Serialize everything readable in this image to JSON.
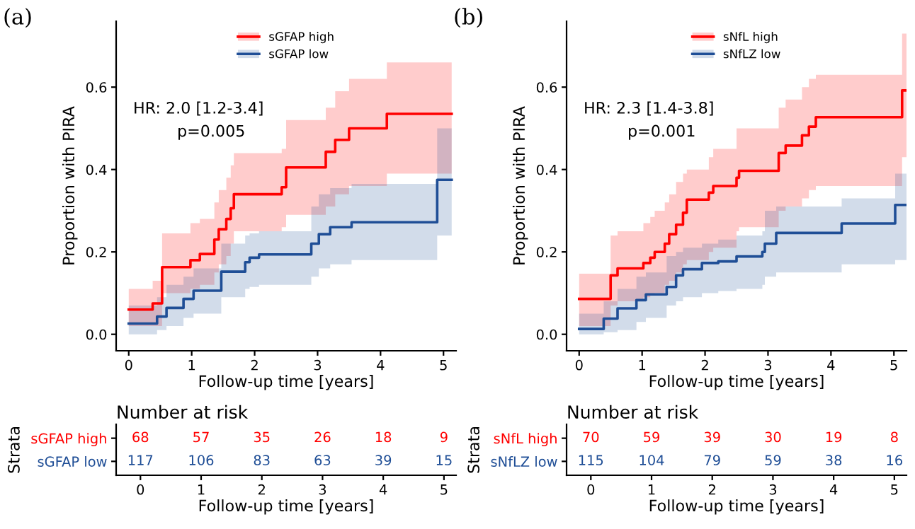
{
  "chart_data": [
    {
      "type": "step",
      "title": "(a)",
      "xlabel": "Follow-up time [years]",
      "ylabel": "Proportion with PIRA",
      "xlim": [
        -0.2,
        5.2
      ],
      "ylim": [
        -0.04,
        0.76
      ],
      "xticks": [
        0,
        1,
        2,
        3,
        4,
        5
      ],
      "yticks": [
        {
          "value": 0,
          "label": "0.0"
        },
        {
          "value": 0.2,
          "label": "0.2"
        },
        {
          "value": 0.4,
          "label": "0.4"
        },
        {
          "value": 0.6,
          "label": "0.6"
        }
      ],
      "legend": "top",
      "annotations": [
        "HR: 2.0 [1.2-3.4]",
        "p=0.005"
      ],
      "series": [
        {
          "name": "sGFAP high",
          "color": "#ff0000",
          "x": [
            0,
            0.38,
            0.53,
            0.98,
            1.13,
            1.36,
            1.43,
            1.55,
            1.62,
            1.67,
            2.43,
            2.5,
            3.13,
            3.28,
            3.5,
            4.1,
            5.13
          ],
          "values": [
            0.06,
            0.075,
            0.163,
            0.18,
            0.195,
            0.23,
            0.255,
            0.28,
            0.306,
            0.34,
            0.357,
            0.405,
            0.443,
            0.472,
            0.5,
            0.535,
            0.535
          ],
          "lower": [
            0.02,
            0.02,
            0.1,
            0.11,
            0.12,
            0.15,
            0.17,
            0.19,
            0.22,
            0.25,
            0.26,
            0.29,
            0.31,
            0.34,
            0.36,
            0.39,
            0.39
          ],
          "upper": [
            0.11,
            0.13,
            0.245,
            0.27,
            0.28,
            0.32,
            0.35,
            0.38,
            0.41,
            0.44,
            0.45,
            0.52,
            0.55,
            0.59,
            0.62,
            0.66,
            0.66
          ]
        },
        {
          "name": "sGFAP low",
          "color": "#1f4e96",
          "x": [
            0,
            0.45,
            0.6,
            0.87,
            1.03,
            1.47,
            1.85,
            1.92,
            2.07,
            2.9,
            3.02,
            3.2,
            3.54,
            4.9,
            5.13
          ],
          "values": [
            0.026,
            0.043,
            0.064,
            0.086,
            0.106,
            0.152,
            0.175,
            0.186,
            0.194,
            0.22,
            0.243,
            0.26,
            0.272,
            0.375,
            0.375
          ],
          "lower": [
            0,
            0.01,
            0.02,
            0.04,
            0.05,
            0.09,
            0.11,
            0.115,
            0.12,
            0.14,
            0.16,
            0.17,
            0.18,
            0.24,
            0.24
          ],
          "upper": [
            0.07,
            0.09,
            0.12,
            0.14,
            0.16,
            0.22,
            0.24,
            0.245,
            0.25,
            0.31,
            0.34,
            0.355,
            0.365,
            0.5,
            0.5
          ]
        }
      ]
    },
    {
      "type": "step",
      "title": "(b)",
      "xlabel": "Follow-up time [years]",
      "ylabel": "Proportion with PIRA",
      "xlim": [
        -0.2,
        5.2
      ],
      "ylim": [
        -0.04,
        0.76
      ],
      "xticks": [
        0,
        1,
        2,
        3,
        4,
        5
      ],
      "yticks": [
        {
          "value": 0,
          "label": "0.0"
        },
        {
          "value": 0.2,
          "label": "0.2"
        },
        {
          "value": 0.4,
          "label": "0.4"
        },
        {
          "value": 0.6,
          "label": "0.6"
        }
      ],
      "legend": "top",
      "annotations": [
        "HR: 2.3 [1.4-3.8]",
        "p=0.001"
      ],
      "series": [
        {
          "name": "sNfL high",
          "color": "#ff0000",
          "x": [
            0,
            0.5,
            0.61,
            1.02,
            1.13,
            1.2,
            1.36,
            1.43,
            1.54,
            1.65,
            1.71,
            2.06,
            2.13,
            2.5,
            2.54,
            3.17,
            3.28,
            3.54,
            3.65,
            3.76,
            5.13,
            5.2
          ],
          "values": [
            0.086,
            0.143,
            0.16,
            0.173,
            0.186,
            0.2,
            0.22,
            0.243,
            0.266,
            0.295,
            0.327,
            0.344,
            0.36,
            0.38,
            0.397,
            0.44,
            0.458,
            0.483,
            0.504,
            0.527,
            0.592,
            0.592
          ],
          "lower": [
            0.02,
            0.07,
            0.08,
            0.09,
            0.095,
            0.1,
            0.12,
            0.13,
            0.15,
            0.17,
            0.18,
            0.2,
            0.21,
            0.25,
            0.26,
            0.3,
            0.31,
            0.33,
            0.35,
            0.36,
            0.43,
            0.43
          ],
          "upper": [
            0.147,
            0.24,
            0.25,
            0.27,
            0.285,
            0.3,
            0.32,
            0.34,
            0.37,
            0.39,
            0.4,
            0.43,
            0.45,
            0.5,
            0.5,
            0.55,
            0.57,
            0.6,
            0.62,
            0.63,
            0.73,
            0.73
          ]
        },
        {
          "name": "sNfLZ low",
          "color": "#1f4e96",
          "x": [
            0,
            0.39,
            0.61,
            0.91,
            1.06,
            1.39,
            1.54,
            1.65,
            1.95,
            2.21,
            2.5,
            2.91,
            2.95,
            3.13,
            4.17,
            5.02,
            5.2
          ],
          "values": [
            0.013,
            0.038,
            0.063,
            0.083,
            0.097,
            0.115,
            0.143,
            0.158,
            0.173,
            0.177,
            0.189,
            0.2,
            0.22,
            0.246,
            0.269,
            0.314,
            0.314
          ],
          "lower": [
            0,
            0.005,
            0.01,
            0.03,
            0.04,
            0.07,
            0.08,
            0.09,
            0.1,
            0.105,
            0.11,
            0.12,
            0.14,
            0.15,
            0.17,
            0.18,
            0.18
          ],
          "upper": [
            0.05,
            0.08,
            0.11,
            0.14,
            0.15,
            0.19,
            0.2,
            0.21,
            0.22,
            0.23,
            0.24,
            0.25,
            0.3,
            0.31,
            0.33,
            0.39,
            0.39
          ]
        }
      ]
    },
    {
      "type": "heatmap",
      "title": "Number at risk",
      "xlabel": "Follow-up time [years]",
      "ylabel": "Strata",
      "data_labels": true,
      "categories": [
        "0",
        "1",
        "2",
        "3",
        "4",
        "5"
      ],
      "y_categories": [
        "sGFAP high",
        "sGFAP low"
      ],
      "colors": [
        "#ff0000",
        "#1f4e96"
      ],
      "cells": [
        [
          68,
          57,
          35,
          26,
          18,
          9
        ],
        [
          117,
          106,
          83,
          63,
          39,
          15
        ]
      ]
    },
    {
      "type": "heatmap",
      "title": "Number at risk",
      "xlabel": "Follow-up time [years]",
      "ylabel": "Strata",
      "data_labels": true,
      "categories": [
        "0",
        "1",
        "2",
        "3",
        "4",
        "5"
      ],
      "y_categories": [
        "sNfL high",
        "sNfLZ low"
      ],
      "colors": [
        "#ff0000",
        "#1f4e96"
      ],
      "cells": [
        [
          70,
          59,
          39,
          30,
          19,
          8
        ],
        [
          115,
          104,
          79,
          59,
          38,
          16
        ]
      ]
    }
  ]
}
